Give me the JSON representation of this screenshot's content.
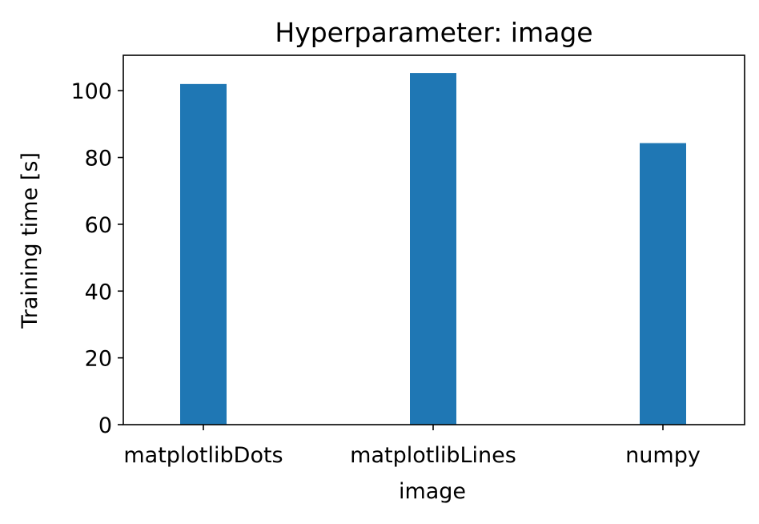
{
  "chart_data": {
    "type": "bar",
    "title": "Hyperparameter: image",
    "xlabel": "image",
    "ylabel": "Training time [s]",
    "categories": [
      "matplotlibDots",
      "matplotlibLines",
      "numpy"
    ],
    "values": [
      102,
      105.3,
      84.3
    ],
    "ylim": [
      0,
      110.6
    ],
    "yticks": [
      0,
      20,
      40,
      60,
      80,
      100
    ],
    "grid": false,
    "legend": "none",
    "bar_color": "#1f77b4"
  }
}
